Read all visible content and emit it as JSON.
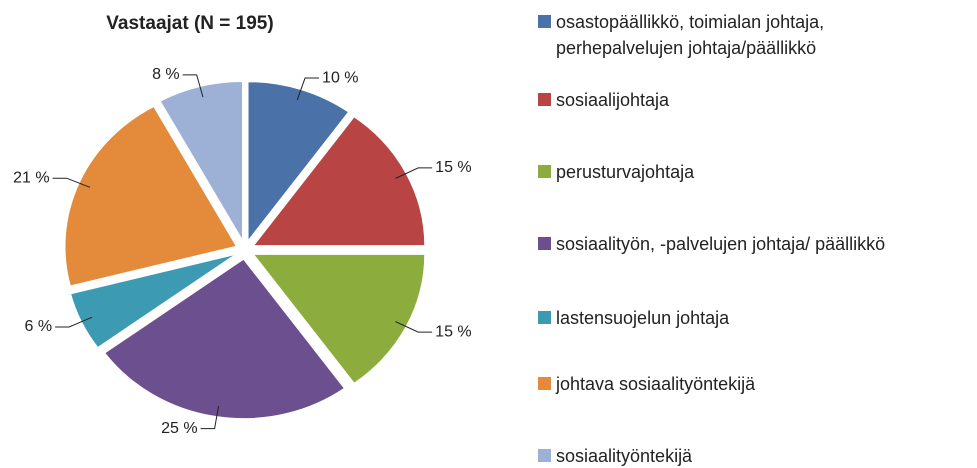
{
  "chart_data": {
    "type": "pie",
    "title": "Vastaajat (N = 195)",
    "categories": [
      "osastopäällikkö, toimialan johtaja,\nperhepalvelujen johtaja/päällikkö",
      "sosiaalijohtaja",
      "perusturvajohtaja",
      "sosiaalityön, -palvelujen johtaja/ päällikkö",
      "lastensuojelun johtaja",
      "johtava sosiaalityöntekijä",
      "sosiaalityöntekijä"
    ],
    "values": [
      10,
      15,
      15,
      25,
      6,
      21,
      8
    ],
    "value_labels": [
      "10 %",
      "15 %",
      "15 %",
      "25 %",
      "6 %",
      "21 %",
      "8 %"
    ],
    "colors": [
      "#4a72a8",
      "#b84444",
      "#8cad3e",
      "#6c4f8f",
      "#3c9bb3",
      "#e38b3b",
      "#9db0d6"
    ]
  }
}
